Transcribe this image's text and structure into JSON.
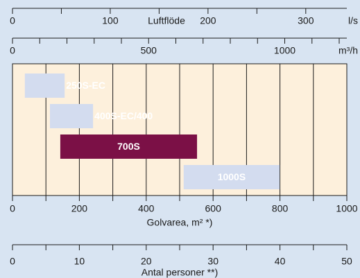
{
  "chart_data": {
    "type": "range-bar",
    "categories": [
      "250S-EC",
      "400S-EC/400",
      "700S",
      "1000S"
    ],
    "values": [
      [
        37,
        156
      ],
      [
        112,
        241
      ],
      [
        143,
        552
      ],
      [
        512,
        799
      ]
    ],
    "colors": [
      "#d3dcef",
      "#d3dcef",
      "#7b1046",
      "#d3dcef"
    ],
    "xlabel": "Golvarea, m² *)",
    "xlim": [
      0,
      1000
    ],
    "xticks": [
      0,
      200,
      400,
      600,
      800,
      1000
    ],
    "minor_xticks": [
      100,
      300,
      500,
      700,
      900
    ],
    "grid": true,
    "top_axes": [
      {
        "label": "Luftflöde",
        "unit": "l/s",
        "xlim": [
          0,
          342
        ],
        "xticks": [
          0,
          100,
          200,
          300
        ],
        "minor_xticks": [
          50,
          150,
          250
        ]
      },
      {
        "unit": "m³/h",
        "xlim": [
          0,
          1228
        ],
        "xticks": [
          0,
          500,
          1000
        ],
        "minor_xticks": [
          100,
          200,
          300,
          400,
          600,
          700,
          800,
          900,
          1100,
          1200
        ]
      }
    ],
    "bottom_axis": {
      "label": "Antal personer **)",
      "xlim": [
        0,
        50
      ],
      "xticks": [
        0,
        10,
        20,
        30,
        40,
        50
      ],
      "minor_xticks": [
        5,
        15,
        25,
        35,
        45
      ]
    }
  }
}
